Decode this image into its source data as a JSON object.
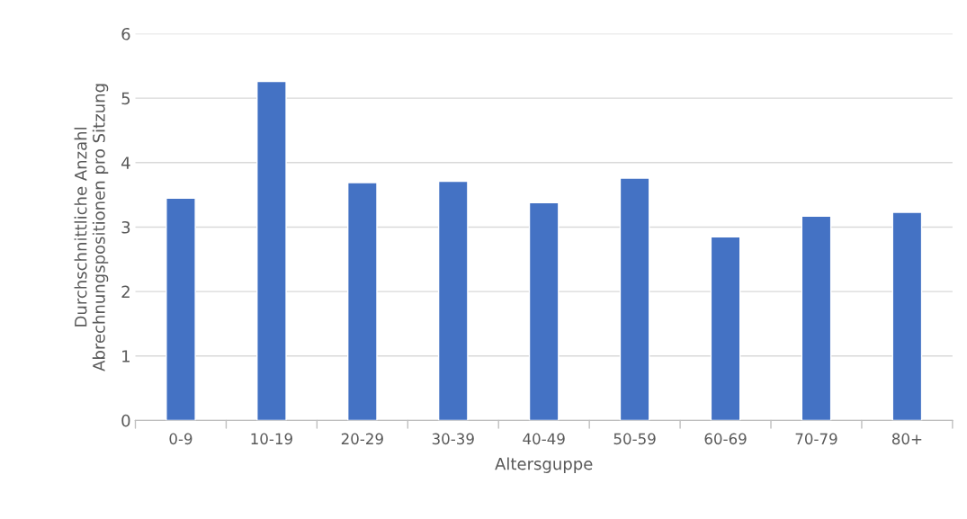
{
  "chart_data": {
    "type": "bar",
    "xlabel": "Altersguppe",
    "ylabel": "Durchschnittliche Anzahl\nAbrechnungspositionen pro Sitzung",
    "categories": [
      "0-9",
      "10-19",
      "20-29",
      "30-39",
      "40-49",
      "50-59",
      "60-69",
      "70-79",
      "80+"
    ],
    "values": [
      3.45,
      5.26,
      3.69,
      3.71,
      3.38,
      3.76,
      2.85,
      3.17,
      3.23
    ],
    "color": "#4472c4",
    "ylim": [
      0,
      6
    ],
    "yticks": [
      0,
      1,
      2,
      3,
      4,
      5,
      6
    ],
    "grid": "y",
    "legend": false
  }
}
